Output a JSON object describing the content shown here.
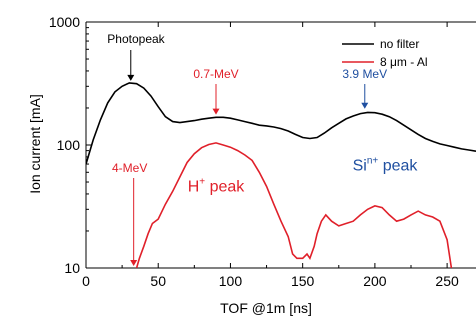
{
  "chart_data": {
    "type": "line",
    "xlabel": "TOF @1m [ns]",
    "ylabel": "Ion current [mA]",
    "xlim": [
      0,
      270
    ],
    "ylim": [
      10,
      1000
    ],
    "yscale": "log",
    "xticks": [
      0,
      50,
      100,
      150,
      200,
      250
    ],
    "yticks": [
      10,
      100,
      1000
    ],
    "legend_position": "top-right",
    "colors": {
      "no_filter": "#000000",
      "al": "#e0202a",
      "blue": "#1f4fa0",
      "red": "#e0202a"
    },
    "series": [
      {
        "name": "no filter",
        "color": "#000000",
        "x": [
          0,
          5,
          10,
          15,
          20,
          25,
          30,
          35,
          40,
          45,
          50,
          55,
          60,
          65,
          70,
          75,
          80,
          85,
          90,
          95,
          100,
          105,
          110,
          115,
          120,
          125,
          130,
          135,
          140,
          145,
          150,
          155,
          160,
          165,
          170,
          175,
          180,
          185,
          190,
          195,
          200,
          205,
          210,
          215,
          220,
          225,
          230,
          235,
          240,
          245,
          250,
          255,
          260,
          265,
          270
        ],
        "y": [
          70,
          110,
          160,
          220,
          270,
          300,
          320,
          315,
          290,
          250,
          205,
          170,
          155,
          152,
          155,
          158,
          162,
          165,
          168,
          168,
          165,
          160,
          155,
          150,
          145,
          143,
          140,
          136,
          130,
          122,
          115,
          113,
          115,
          125,
          138,
          150,
          163,
          172,
          180,
          184,
          183,
          178,
          170,
          158,
          145,
          133,
          122,
          113,
          107,
          102,
          99,
          96,
          93,
          91,
          89
        ]
      },
      {
        "name": "8 μm - Al",
        "color": "#e0202a",
        "x": [
          35,
          37,
          40,
          43,
          46,
          50,
          55,
          60,
          65,
          70,
          75,
          80,
          85,
          90,
          95,
          100,
          105,
          110,
          115,
          120,
          125,
          130,
          135,
          140,
          143,
          146,
          150,
          153,
          155,
          158,
          160,
          163,
          166,
          170,
          175,
          180,
          185,
          190,
          195,
          200,
          205,
          210,
          215,
          220,
          225,
          230,
          235,
          240,
          245,
          250,
          253
        ],
        "y": [
          10,
          12,
          15,
          19,
          23,
          25,
          33,
          42,
          55,
          72,
          85,
          95,
          101,
          104,
          100,
          96,
          90,
          83,
          75,
          60,
          46,
          33,
          24,
          18,
          13,
          12,
          12,
          13,
          12,
          15,
          19,
          24,
          27,
          24,
          22,
          23,
          24,
          27,
          30,
          32,
          31,
          27,
          24,
          25,
          27,
          29,
          27,
          26,
          24,
          17,
          10
        ]
      }
    ],
    "legend": [
      {
        "label": "no filter",
        "color": "#000000"
      },
      {
        "label": "8 μm - Al",
        "color": "#e0202a"
      }
    ],
    "annotations": [
      {
        "text": "Photopeak",
        "x": 31,
        "y": 320,
        "color": "#000000"
      },
      {
        "text": "0.7-MeV",
        "x": 90,
        "y": 170,
        "color": "#e0202a"
      },
      {
        "text": "3.9 MeV",
        "x": 193,
        "y": 190,
        "color": "#1f4fa0"
      },
      {
        "text": "4-MeV",
        "x": 33,
        "y": 10,
        "color": "#e0202a"
      }
    ],
    "region_labels": [
      {
        "main": "H",
        "sup": "+",
        "suffix": " peak",
        "x": 90,
        "y": 42,
        "color": "#e0202a"
      },
      {
        "main": "Si",
        "sup": "n+",
        "suffix": " peak",
        "x": 207,
        "y": 62,
        "color": "#1f4fa0"
      }
    ]
  }
}
